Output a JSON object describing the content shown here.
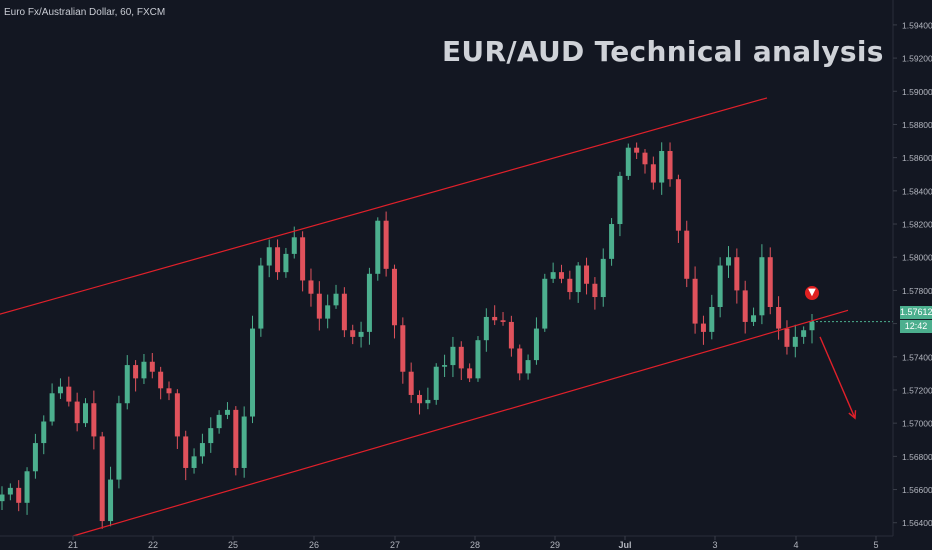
{
  "header": {
    "symbol_line": "Euro Fx/Australian Dollar, 60, FXCM"
  },
  "overlay": {
    "title": "EUR/AUD Technical analysis"
  },
  "badges": {
    "last_price": "1.57612",
    "countdown": "12:42"
  },
  "icons": {
    "sell_marker": "down-arrow-circle-icon"
  },
  "colors": {
    "background": "#131722",
    "bull": "#4caf8e",
    "bear": "#e0525c",
    "channel": "#e0202a",
    "axis_text": "#b2b5be"
  },
  "chart_data": {
    "type": "candlestick",
    "title": "",
    "xlabel": "",
    "ylabel": "",
    "ylim": [
      1.5632,
      1.5955
    ],
    "y_ticks": [
      "1.56400",
      "1.56600",
      "1.56800",
      "1.57000",
      "1.57200",
      "1.57400",
      "1.57600",
      "1.57800",
      "1.58000",
      "1.58200",
      "1.58400",
      "1.58600",
      "1.58800",
      "1.59000",
      "1.59200",
      "1.59400"
    ],
    "x_ticks": [
      "21",
      "22",
      "25",
      "26",
      "27",
      "28",
      "29",
      "Jul",
      "3",
      "4",
      "5"
    ],
    "grid": false,
    "closes_approx": [
      1.5657,
      1.5661,
      1.5652,
      1.5671,
      1.5688,
      1.5701,
      1.5718,
      1.5722,
      1.5713,
      1.57,
      1.5712,
      1.5692,
      1.5641,
      1.5666,
      1.5712,
      1.5735,
      1.5727,
      1.5737,
      1.5731,
      1.5721,
      1.5718,
      1.5692,
      1.5673,
      1.568,
      1.5688,
      1.5697,
      1.5705,
      1.5708,
      1.5673,
      1.5704,
      1.5757,
      1.5795,
      1.5806,
      1.5791,
      1.5802,
      1.5812,
      1.5786,
      1.5778,
      1.5763,
      1.5771,
      1.5778,
      1.5756,
      1.5752,
      1.5755,
      1.579,
      1.5822,
      1.5793,
      1.5759,
      1.5731,
      1.5717,
      1.5712,
      1.5714,
      1.5734,
      1.5735,
      1.5746,
      1.5733,
      1.5727,
      1.575,
      1.5764,
      1.5762,
      1.5761,
      1.5745,
      1.573,
      1.5738,
      1.5757,
      1.5787,
      1.5791,
      1.5787,
      1.5779,
      1.5795,
      1.5784,
      1.5776,
      1.5799,
      1.582,
      1.5849,
      1.5866,
      1.5863,
      1.5856,
      1.5845,
      1.5864,
      1.5847,
      1.5816,
      1.5787,
      1.576,
      1.5755,
      1.577,
      1.5795,
      1.58,
      1.578,
      1.5761,
      1.5765,
      1.58,
      1.577,
      1.5757,
      1.5746,
      1.5752,
      1.5756,
      1.5761
    ],
    "channel_lines": [
      {
        "name": "",
        "from": [
          "20",
          1.57645
        ],
        "to": [
          "3",
          1.5896
        ]
      },
      {
        "name": "",
        "from": [
          "21",
          1.5632
        ],
        "to": [
          "4",
          1.5768
        ]
      }
    ],
    "projection": {
      "from": [
        "4",
        1.5752
      ],
      "to": [
        "5",
        1.5703
      ]
    },
    "last_price": 1.57612
  }
}
